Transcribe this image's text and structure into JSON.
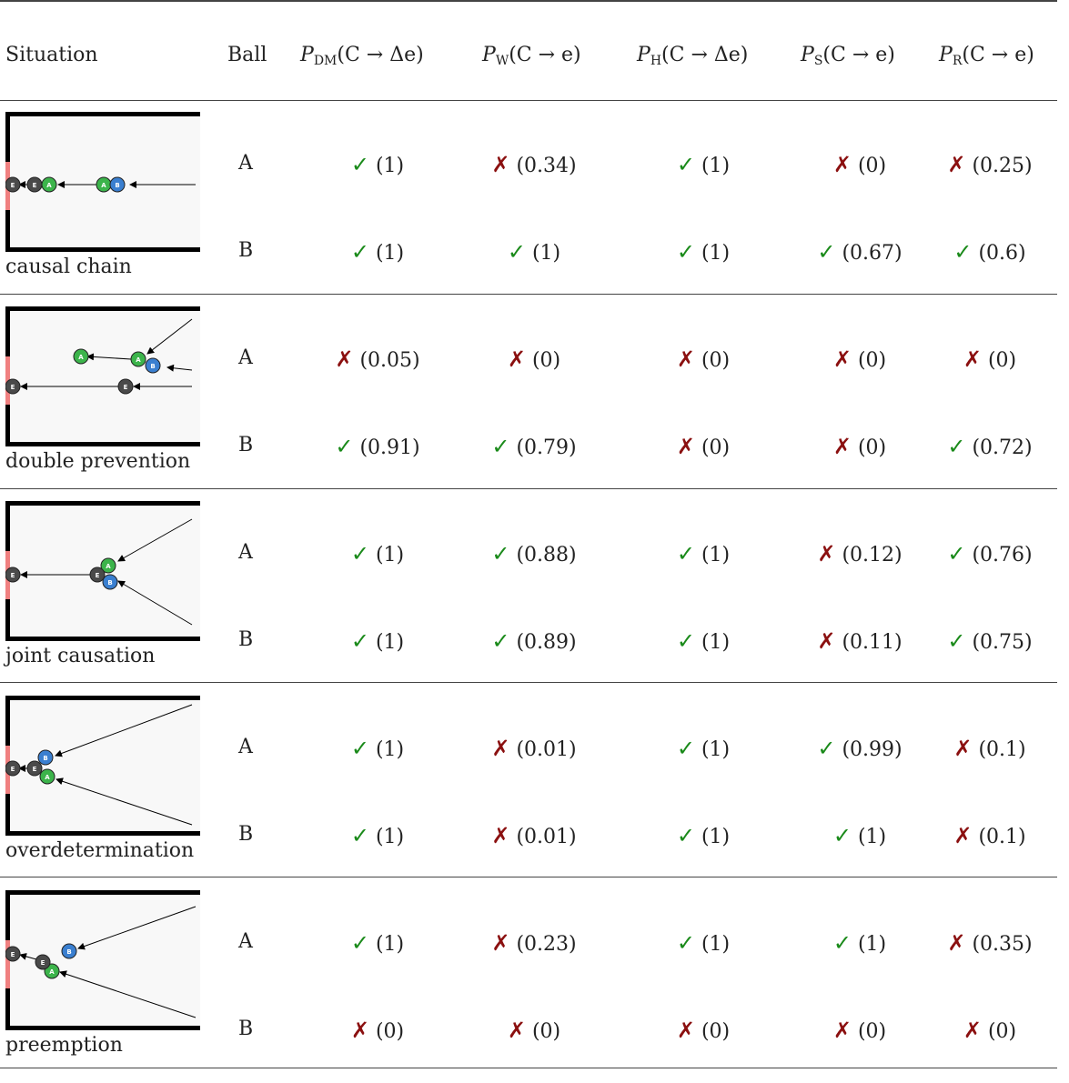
{
  "headers": {
    "situation": "Situation",
    "ball": "Ball",
    "cols": [
      {
        "sym": "P",
        "sub": "DM",
        "args": "(C → Δe)"
      },
      {
        "sym": "P",
        "sub": "W",
        "args": "(C → e)"
      },
      {
        "sym": "P",
        "sub": "H",
        "args": "(C → Δe)"
      },
      {
        "sym": "P",
        "sub": "S",
        "args": "(C → e)"
      },
      {
        "sym": "P",
        "sub": "R",
        "args": "(C → e)"
      }
    ]
  },
  "rows": [
    {
      "situation": "causal chain",
      "balls": [
        {
          "ball": "A",
          "cells": [
            {
              "ok": true,
              "val": "(1)"
            },
            {
              "ok": false,
              "val": "(0.34)"
            },
            {
              "ok": true,
              "val": "(1)"
            },
            {
              "ok": false,
              "val": "(0)"
            },
            {
              "ok": false,
              "val": "(0.25)"
            }
          ]
        },
        {
          "ball": "B",
          "cells": [
            {
              "ok": true,
              "val": "(1)"
            },
            {
              "ok": true,
              "val": "(1)"
            },
            {
              "ok": true,
              "val": "(1)"
            },
            {
              "ok": true,
              "val": "(0.67)"
            },
            {
              "ok": true,
              "val": "(0.6)"
            }
          ]
        }
      ]
    },
    {
      "situation": "double prevention",
      "balls": [
        {
          "ball": "A",
          "cells": [
            {
              "ok": false,
              "val": "(0.05)"
            },
            {
              "ok": false,
              "val": "(0)"
            },
            {
              "ok": false,
              "val": "(0)"
            },
            {
              "ok": false,
              "val": "(0)"
            },
            {
              "ok": false,
              "val": "(0)"
            }
          ]
        },
        {
          "ball": "B",
          "cells": [
            {
              "ok": true,
              "val": "(0.91)"
            },
            {
              "ok": true,
              "val": "(0.79)"
            },
            {
              "ok": false,
              "val": "(0)"
            },
            {
              "ok": false,
              "val": "(0)"
            },
            {
              "ok": true,
              "val": "(0.72)"
            }
          ]
        }
      ]
    },
    {
      "situation": "joint causation",
      "balls": [
        {
          "ball": "A",
          "cells": [
            {
              "ok": true,
              "val": "(1)"
            },
            {
              "ok": true,
              "val": "(0.88)"
            },
            {
              "ok": true,
              "val": "(1)"
            },
            {
              "ok": false,
              "val": "(0.12)"
            },
            {
              "ok": true,
              "val": "(0.76)"
            }
          ]
        },
        {
          "ball": "B",
          "cells": [
            {
              "ok": true,
              "val": "(1)"
            },
            {
              "ok": true,
              "val": "(0.89)"
            },
            {
              "ok": true,
              "val": "(1)"
            },
            {
              "ok": false,
              "val": "(0.11)"
            },
            {
              "ok": true,
              "val": "(0.75)"
            }
          ]
        }
      ]
    },
    {
      "situation": "overdetermination",
      "balls": [
        {
          "ball": "A",
          "cells": [
            {
              "ok": true,
              "val": "(1)"
            },
            {
              "ok": false,
              "val": "(0.01)"
            },
            {
              "ok": true,
              "val": "(1)"
            },
            {
              "ok": true,
              "val": "(0.99)"
            },
            {
              "ok": false,
              "val": "(0.1)"
            }
          ]
        },
        {
          "ball": "B",
          "cells": [
            {
              "ok": true,
              "val": "(1)"
            },
            {
              "ok": false,
              "val": "(0.01)"
            },
            {
              "ok": true,
              "val": "(1)"
            },
            {
              "ok": true,
              "val": "(1)"
            },
            {
              "ok": false,
              "val": "(0.1)"
            }
          ]
        }
      ]
    },
    {
      "situation": "preemption",
      "balls": [
        {
          "ball": "A",
          "cells": [
            {
              "ok": true,
              "val": "(1)"
            },
            {
              "ok": false,
              "val": "(0.23)"
            },
            {
              "ok": true,
              "val": "(1)"
            },
            {
              "ok": true,
              "val": "(1)"
            },
            {
              "ok": false,
              "val": "(0.35)"
            }
          ]
        },
        {
          "ball": "B",
          "cells": [
            {
              "ok": false,
              "val": "(0)"
            },
            {
              "ok": false,
              "val": "(0)"
            },
            {
              "ok": false,
              "val": "(0)"
            },
            {
              "ok": false,
              "val": "(0)"
            },
            {
              "ok": false,
              "val": "(0)"
            }
          ]
        }
      ]
    }
  ],
  "symbols": {
    "check": "✓",
    "cross": "✗"
  },
  "ball_letters": {
    "a": "A",
    "b": "B",
    "e": "E"
  },
  "colors": {
    "check": "#1a8a1a",
    "cross": "#8b1010",
    "ball_a": "#3cb44b",
    "ball_b": "#3a7fd0",
    "ball_e": "#4a4a4a",
    "goal": "#f08080",
    "wall": "#000000",
    "field": "#f8f8f8"
  }
}
